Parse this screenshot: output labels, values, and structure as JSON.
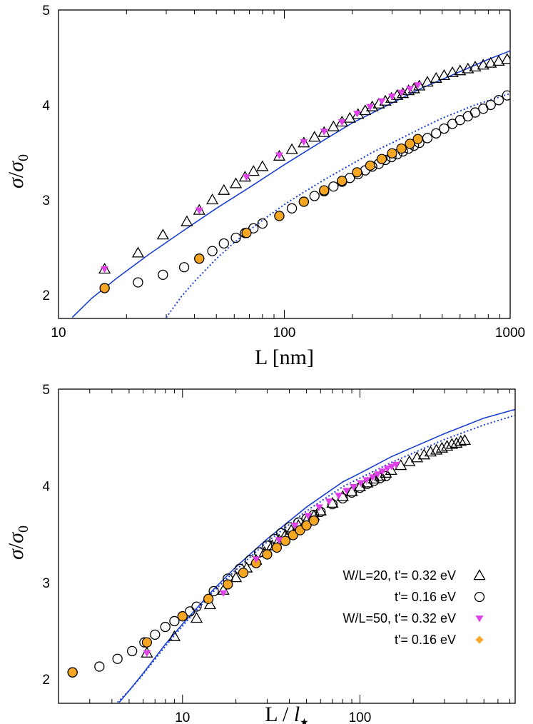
{
  "chart_data": [
    {
      "type": "scatter",
      "title": "",
      "xlabel": "L [nm]",
      "ylabel_main": "σ",
      "ylabel_den": "σ",
      "ylabel_sub": "0",
      "xscale": "log",
      "xlim": [
        10,
        1000
      ],
      "ylim": [
        1.75,
        5.0
      ],
      "x_ticks": [
        10,
        100,
        1000
      ],
      "x_tick_labels": [
        "10",
        "100",
        "1000"
      ],
      "y_ticks": [
        2,
        3,
        4,
        5
      ],
      "y_tick_labels": [
        "2",
        "3",
        "4",
        "5"
      ],
      "grid": false,
      "legend": "none",
      "series": [
        {
          "marker": "open-triangle",
          "color": "#000000",
          "x": [
            16,
            22.5,
            29,
            37,
            42,
            48,
            54,
            61,
            67,
            73,
            80,
            95,
            108,
            122,
            136,
            150,
            165,
            180,
            195,
            212,
            228,
            245,
            262,
            280,
            298,
            316,
            335,
            355,
            375,
            396,
            430,
            470,
            510,
            555,
            600,
            650,
            700,
            760,
            820,
            890,
            970
          ],
          "y": [
            2.27,
            2.44,
            2.63,
            2.77,
            2.89,
            3.0,
            3.1,
            3.17,
            3.24,
            3.3,
            3.35,
            3.46,
            3.53,
            3.6,
            3.66,
            3.71,
            3.77,
            3.82,
            3.86,
            3.9,
            3.94,
            3.98,
            4.01,
            4.04,
            4.07,
            4.1,
            4.12,
            4.15,
            4.17,
            4.2,
            4.24,
            4.28,
            4.31,
            4.34,
            4.36,
            4.38,
            4.4,
            4.42,
            4.44,
            4.46,
            4.48
          ]
        },
        {
          "marker": "open-circle",
          "color": "#000000",
          "x": [
            16,
            22.5,
            29,
            36,
            42,
            48,
            54,
            61,
            67,
            73,
            80,
            95,
            108,
            122,
            136,
            150,
            165,
            180,
            195,
            212,
            228,
            245,
            262,
            280,
            298,
            316,
            335,
            355,
            375,
            396,
            430,
            470,
            510,
            555,
            600,
            650,
            700,
            760,
            820,
            890,
            970
          ],
          "y": [
            2.07,
            2.13,
            2.21,
            2.29,
            2.38,
            2.46,
            2.54,
            2.6,
            2.65,
            2.7,
            2.75,
            2.83,
            2.91,
            2.98,
            3.04,
            3.09,
            3.14,
            3.19,
            3.23,
            3.27,
            3.31,
            3.35,
            3.38,
            3.42,
            3.45,
            3.48,
            3.51,
            3.54,
            3.57,
            3.6,
            3.65,
            3.7,
            3.75,
            3.8,
            3.84,
            3.88,
            3.92,
            3.96,
            4.0,
            4.05,
            4.1
          ]
        },
        {
          "marker": "filled-triangle-down",
          "color": "#e040e8",
          "x": [
            16,
            42,
            68,
            95,
            122,
            150,
            180,
            210,
            240,
            270,
            300,
            330,
            360,
            390
          ],
          "y": [
            2.27,
            2.89,
            3.24,
            3.47,
            3.61,
            3.72,
            3.82,
            3.91,
            3.98,
            4.04,
            4.09,
            4.13,
            4.17,
            4.21
          ]
        },
        {
          "marker": "filled-circle",
          "color": "#f5a623",
          "x": [
            16,
            42,
            68,
            95,
            122,
            150,
            180,
            210,
            240,
            270,
            300,
            330,
            360,
            390
          ],
          "y": [
            2.07,
            2.38,
            2.65,
            2.83,
            2.98,
            3.1,
            3.2,
            3.29,
            3.36,
            3.43,
            3.49,
            3.54,
            3.59,
            3.64
          ]
        },
        {
          "marker": "solid-line",
          "color": "#1a3fd6",
          "x": [
            11.5,
            14,
            18,
            25,
            35,
            50,
            70,
            100,
            150,
            200,
            300,
            400,
            600,
            800,
            1000
          ],
          "y": [
            1.76,
            1.96,
            2.17,
            2.42,
            2.66,
            2.91,
            3.13,
            3.37,
            3.63,
            3.81,
            4.02,
            4.17,
            4.35,
            4.48,
            4.57
          ]
        },
        {
          "marker": "dotted-line",
          "color": "#1a3fd6",
          "x": [
            30,
            35,
            40,
            50,
            60,
            70,
            85,
            100,
            120,
            150,
            200,
            250,
            300,
            400,
            500,
            700,
            1000
          ],
          "y": [
            1.76,
            1.98,
            2.14,
            2.38,
            2.55,
            2.68,
            2.83,
            2.95,
            3.07,
            3.21,
            3.38,
            3.51,
            3.6,
            3.75,
            3.86,
            4.0,
            4.12
          ]
        }
      ]
    },
    {
      "type": "scatter",
      "title": "",
      "xlabel_main": "L",
      "xlabel_sep": "/",
      "xlabel_l": "l",
      "xlabel_star": "★",
      "ylabel_main": "σ",
      "ylabel_den": "σ",
      "ylabel_sub": "0",
      "xscale": "log",
      "xlim": [
        2.0,
        750
      ],
      "ylim": [
        1.75,
        5.0
      ],
      "x_ticks": [
        10,
        100
      ],
      "x_tick_labels": [
        "10",
        "100"
      ],
      "y_ticks": [
        2,
        3,
        4,
        5
      ],
      "y_tick_labels": [
        "2",
        "3",
        "4",
        "5"
      ],
      "grid": false,
      "legend": "bottom-right",
      "legend_entries": [
        {
          "label": "W/L=20, t'= 0.32 eV",
          "marker": "open-triangle",
          "color": "#000000"
        },
        {
          "label": "t'= 0.16 eV",
          "marker": "open-circle",
          "color": "#000000"
        },
        {
          "label": "W/L=50, t'= 0.32 eV",
          "marker": "filled-triangle-down",
          "color": "#e040e8"
        },
        {
          "label": "t'= 0.16 eV",
          "marker": "filled-circle",
          "color": "#f5a623"
        }
      ],
      "series": [
        {
          "marker": "open-triangle",
          "color": "#000000",
          "x": [
            6.3,
            9,
            12,
            14.3,
            17,
            20,
            23,
            26,
            29,
            32,
            35,
            38,
            41,
            45,
            50,
            55,
            60,
            70,
            80,
            90,
            100,
            110,
            120,
            130,
            140,
            150,
            170,
            190,
            210,
            230,
            250,
            270,
            290,
            310,
            330,
            350,
            370,
            390
          ],
          "y": [
            2.27,
            2.44,
            2.63,
            2.77,
            2.92,
            3.05,
            3.15,
            3.23,
            3.31,
            3.38,
            3.44,
            3.49,
            3.54,
            3.59,
            3.64,
            3.69,
            3.74,
            3.82,
            3.89,
            3.94,
            3.99,
            4.03,
            4.07,
            4.1,
            4.13,
            4.16,
            4.21,
            4.25,
            4.29,
            4.32,
            4.35,
            4.37,
            4.39,
            4.41,
            4.43,
            4.44,
            4.46,
            4.47
          ]
        },
        {
          "marker": "open-circle",
          "color": "#000000",
          "x": [
            2.4,
            3.4,
            4.3,
            5.2,
            6.1,
            7.0,
            8.0,
            9.0,
            10.0,
            11.0,
            12.0,
            15.0,
            18.0,
            21.0,
            24.0,
            27.0,
            30.0,
            33.0,
            36.0,
            40.0,
            45.0,
            50.0,
            55.0,
            60.0,
            70.0,
            80.0,
            90.0,
            100.0,
            110.0,
            120.0,
            130.0,
            140.0
          ],
          "y": [
            2.07,
            2.13,
            2.21,
            2.29,
            2.38,
            2.46,
            2.54,
            2.6,
            2.65,
            2.7,
            2.75,
            2.91,
            3.04,
            3.14,
            3.23,
            3.31,
            3.38,
            3.45,
            3.51,
            3.57,
            3.62,
            3.66,
            3.7,
            3.73,
            3.81,
            3.87,
            3.93,
            3.98,
            4.02,
            4.05,
            4.08,
            4.1
          ]
        },
        {
          "marker": "filled-triangle-down",
          "color": "#e040e8",
          "x": [
            6.3,
            17,
            26,
            35,
            43,
            51,
            59,
            67,
            76,
            84,
            92,
            101,
            109,
            118,
            126,
            134,
            143,
            151,
            160
          ],
          "y": [
            2.27,
            2.89,
            3.24,
            3.44,
            3.59,
            3.69,
            3.78,
            3.84,
            3.9,
            3.95,
            3.99,
            4.03,
            4.06,
            4.09,
            4.12,
            4.15,
            4.18,
            4.2,
            4.22
          ]
        },
        {
          "marker": "filled-circle",
          "color": "#f5a623",
          "x": [
            2.4,
            6.3,
            10,
            14,
            18,
            22,
            26,
            30,
            34,
            38,
            42,
            46,
            50,
            55
          ],
          "y": [
            2.07,
            2.38,
            2.65,
            2.83,
            2.98,
            3.1,
            3.2,
            3.29,
            3.36,
            3.43,
            3.49,
            3.54,
            3.59,
            3.64
          ]
        },
        {
          "marker": "solid-line",
          "color": "#1a3fd6",
          "x": [
            4.4,
            5,
            6,
            8,
            10,
            15,
            20,
            30,
            50,
            80,
            100,
            150,
            200,
            300,
            500,
            750
          ],
          "y": [
            1.76,
            1.88,
            2.06,
            2.36,
            2.57,
            2.93,
            3.16,
            3.45,
            3.78,
            4.04,
            4.13,
            4.3,
            4.4,
            4.54,
            4.7,
            4.79
          ]
        },
        {
          "marker": "dotted-line",
          "color": "#1a3fd6",
          "x": [
            4.3,
            5,
            6,
            8,
            10,
            15,
            20,
            30,
            50,
            80,
            100,
            150,
            200,
            300,
            500,
            750
          ],
          "y": [
            1.76,
            1.88,
            2.05,
            2.34,
            2.55,
            2.91,
            3.13,
            3.42,
            3.74,
            3.99,
            4.08,
            4.24,
            4.34,
            4.48,
            4.63,
            4.73
          ]
        }
      ]
    }
  ]
}
